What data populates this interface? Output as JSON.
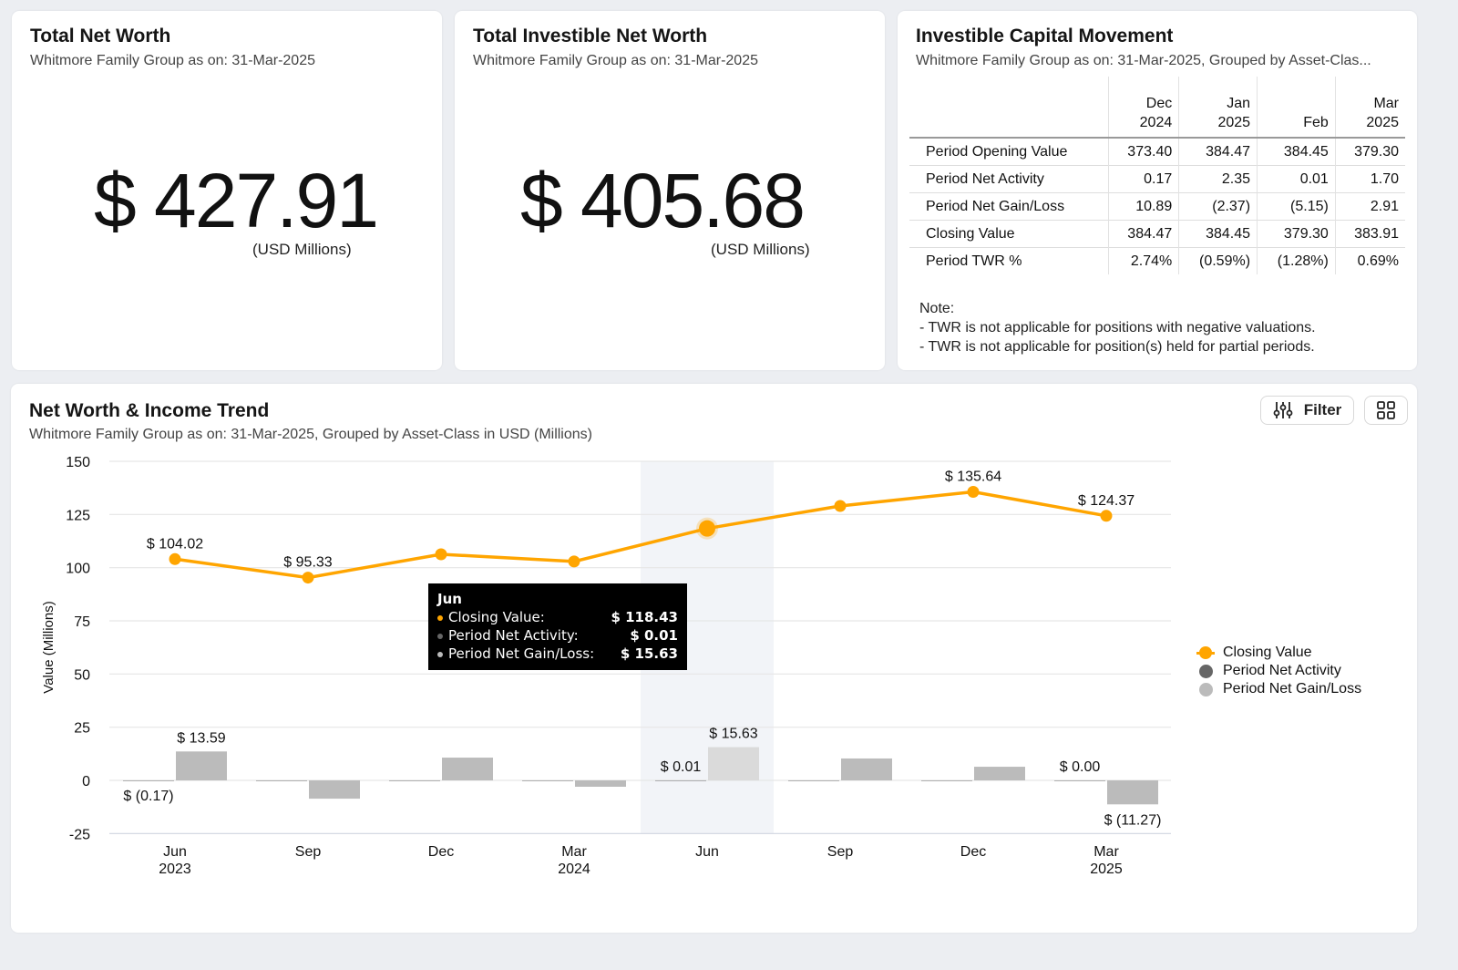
{
  "cards": {
    "net_worth": {
      "title": "Total Net Worth",
      "subtitle": "Whitmore Family Group as on: 31-Mar-2025",
      "value": "$ 427.91",
      "unit": "(USD Millions)"
    },
    "investible": {
      "title": "Total Investible Net Worth",
      "subtitle": "Whitmore Family Group as on: 31-Mar-2025",
      "value": "$ 405.68",
      "unit": "(USD Millions)"
    },
    "capital_movement": {
      "title": "Investible Capital Movement",
      "subtitle": "Whitmore Family Group as on: 31-Mar-2025, Grouped by Asset-Clas...",
      "columns": [
        [
          "Dec",
          "2024"
        ],
        [
          "Jan",
          "2025"
        ],
        [
          "",
          "Feb"
        ],
        [
          "Mar",
          "2025"
        ]
      ],
      "rows": [
        {
          "label": "Period Opening Value",
          "values": [
            "373.40",
            "384.47",
            "384.45",
            "379.30"
          ]
        },
        {
          "label": "Period Net Activity",
          "values": [
            "0.17",
            "2.35",
            "0.01",
            "1.70"
          ]
        },
        {
          "label": "Period Net Gain/Loss",
          "values": [
            "10.89",
            "(2.37)",
            "(5.15)",
            "2.91"
          ]
        },
        {
          "label": "Closing Value",
          "values": [
            "384.47",
            "384.45",
            "379.30",
            "383.91"
          ]
        },
        {
          "label": "Period TWR %",
          "values": [
            "2.74%",
            "(0.59%)",
            "(1.28%)",
            "0.69%"
          ]
        }
      ],
      "note": [
        "Note:",
        "- TWR is not applicable for positions with negative valuations.",
        "- TWR is not applicable for position(s) held for partial periods."
      ]
    }
  },
  "trend": {
    "title": "Net Worth & Income Trend",
    "subtitle": "Whitmore Family Group as on: 31-Mar-2025, Grouped by Asset-Class in USD (Millions)",
    "filter_label": "Filter",
    "icons": {
      "filter": "sliders-icon",
      "layout": "grid-icon"
    },
    "tooltip": {
      "title": "Jun",
      "rows": [
        {
          "label": "Closing Value:",
          "value": "$ 118.43",
          "color": "#ffa500"
        },
        {
          "label": "Period Net Activity:",
          "value": "$ 0.01",
          "color": "#666666"
        },
        {
          "label": "Period Net Gain/Loss:",
          "value": "$ 15.63",
          "color": "#bbbbbb"
        }
      ]
    }
  },
  "chart_data": {
    "type": "line+bar",
    "ylabel": "Value (Millions)",
    "ylim": [
      -25,
      150
    ],
    "yticks": [
      150,
      125,
      100,
      75,
      50,
      25,
      0,
      -25
    ],
    "grid": true,
    "legend_placement": "right",
    "categories": [
      [
        "Jun",
        "2023"
      ],
      [
        "Sep",
        ""
      ],
      [
        "Dec",
        ""
      ],
      [
        "Mar",
        "2024"
      ],
      [
        "Jun",
        ""
      ],
      [
        "Sep",
        ""
      ],
      [
        "Dec",
        ""
      ],
      [
        "Mar",
        "2025"
      ]
    ],
    "highlighted_category": 4,
    "series": [
      {
        "name": "Closing Value",
        "kind": "line",
        "color": "#ffa500",
        "values": [
          104.02,
          95.33,
          106.3,
          102.9,
          118.43,
          129.0,
          135.64,
          124.37
        ],
        "labels": [
          "$ 104.02",
          "$ 95.33",
          "",
          "",
          "",
          "",
          "$ 135.64",
          "$ 124.37"
        ]
      },
      {
        "name": "Period Net Activity",
        "kind": "bar",
        "color": "#666666",
        "values": [
          -0.17,
          0,
          0,
          0,
          0.01,
          0,
          0,
          0.0
        ],
        "labels": [
          "$ (0.17)",
          "",
          "",
          "",
          "$ 0.01",
          "",
          "",
          "$ 0.00"
        ]
      },
      {
        "name": "Period Net Gain/Loss",
        "kind": "bar",
        "color": "#bbbbbb",
        "values": [
          13.59,
          -8.6,
          10.7,
          -3.0,
          15.63,
          10.3,
          6.4,
          -11.27
        ],
        "labels": [
          "$ 13.59",
          "",
          "",
          "",
          "$ 15.63",
          "",
          "",
          "$ (11.27)"
        ]
      }
    ]
  }
}
